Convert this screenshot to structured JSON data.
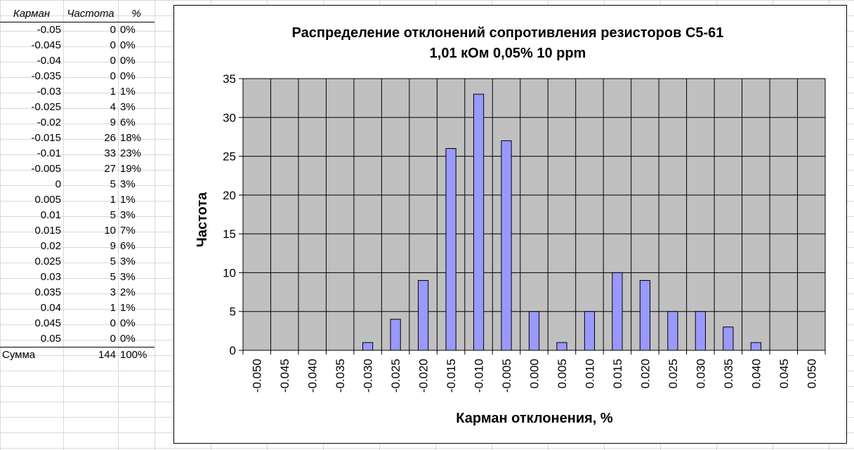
{
  "table": {
    "headers": [
      "Карман",
      "Частота",
      "%"
    ],
    "rows": [
      [
        "-0.05",
        "0",
        "0%"
      ],
      [
        "-0.045",
        "0",
        "0%"
      ],
      [
        "-0.04",
        "0",
        "0%"
      ],
      [
        "-0.035",
        "0",
        "0%"
      ],
      [
        "-0.03",
        "1",
        "1%"
      ],
      [
        "-0.025",
        "4",
        "3%"
      ],
      [
        "-0.02",
        "9",
        "6%"
      ],
      [
        "-0.015",
        "26",
        "18%"
      ],
      [
        "-0.01",
        "33",
        "23%"
      ],
      [
        "-0.005",
        "27",
        "19%"
      ],
      [
        "0",
        "5",
        "3%"
      ],
      [
        "0.005",
        "1",
        "1%"
      ],
      [
        "0.01",
        "5",
        "3%"
      ],
      [
        "0.015",
        "10",
        "7%"
      ],
      [
        "0.02",
        "9",
        "6%"
      ],
      [
        "0.025",
        "5",
        "3%"
      ],
      [
        "0.03",
        "5",
        "3%"
      ],
      [
        "0.035",
        "3",
        "2%"
      ],
      [
        "0.04",
        "1",
        "1%"
      ],
      [
        "0.045",
        "0",
        "0%"
      ],
      [
        "0.05",
        "0",
        "0%"
      ]
    ],
    "sum": [
      "Сумма",
      "144",
      "100%"
    ]
  },
  "colors": {
    "bar_fill": "#9999ff",
    "plot_bg": "#c0c0c0",
    "grid": "#000000"
  },
  "chart_data": {
    "type": "bar",
    "title": "Распределение отклонений сопротивления резисторов С5-61",
    "subtitle": "1,01 кОм 0,05% 10 ppm",
    "xlabel": "Карман отклонения, %",
    "ylabel": "Частота",
    "categories": [
      "-0.050",
      "-0.045",
      "-0.040",
      "-0.035",
      "-0.030",
      "-0.025",
      "-0.020",
      "-0.015",
      "-0.010",
      "-0.005",
      "0.000",
      "0.005",
      "0.010",
      "0.015",
      "0.020",
      "0.025",
      "0.030",
      "0.035",
      "0.040",
      "0.045",
      "0.050"
    ],
    "values": [
      0,
      0,
      0,
      0,
      1,
      4,
      9,
      26,
      33,
      27,
      5,
      1,
      5,
      10,
      9,
      5,
      5,
      3,
      1,
      0,
      0
    ],
    "ylim": [
      0,
      35
    ],
    "yticks": [
      "0",
      "5",
      "10",
      "15",
      "20",
      "25",
      "30",
      "35"
    ],
    "grid": true,
    "legend": "none"
  }
}
